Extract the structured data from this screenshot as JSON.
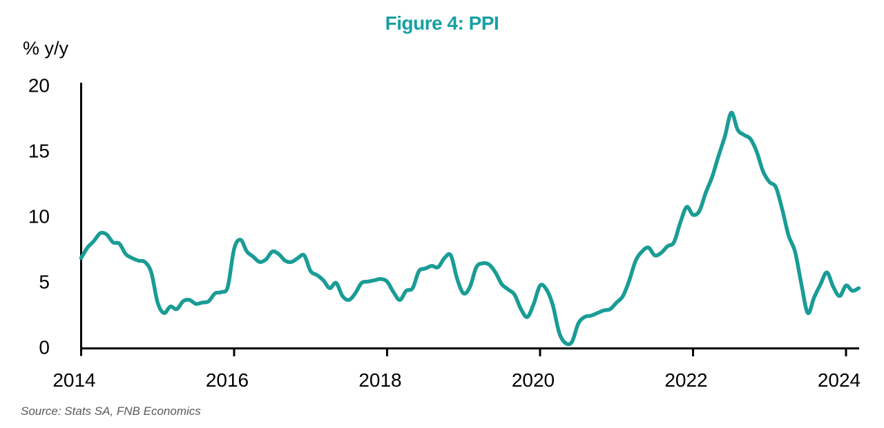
{
  "figure": {
    "title": "Figure 4: PPI",
    "y_axis_unit": "% y/y",
    "source": "Source: Stats SA, FNB Economics"
  },
  "colors": {
    "title_accent": "#17a0a2",
    "line": "#1a9c96",
    "axis": "#000000",
    "source_text": "#595959"
  },
  "chart_data": {
    "type": "line",
    "title": "Figure 4: PPI",
    "xlabel": "",
    "ylabel": "% y/y",
    "source": "Source: Stats SA, FNB Economics",
    "grid": false,
    "legend": "none",
    "xlim": [
      2014,
      2024.25
    ],
    "ylim": [
      0,
      20
    ],
    "x_tick_years": [
      2014,
      2016,
      2018,
      2020,
      2022,
      2024
    ],
    "x_tick_labels": [
      "2014",
      "2016",
      "2018",
      "2020",
      "2022",
      "2024"
    ],
    "y_tick_values": [
      0,
      5,
      10,
      15,
      20
    ],
    "y_tick_labels": [
      "0",
      "5",
      "10",
      "15",
      "20"
    ],
    "series": [
      {
        "name": "PPI",
        "color": "#1a9c96",
        "frequency": "monthly",
        "start_year": 2014,
        "start_month": 1,
        "values": [
          6.9,
          7.7,
          8.2,
          8.8,
          8.7,
          8.1,
          8.0,
          7.2,
          6.9,
          6.7,
          6.6,
          5.8,
          3.5,
          2.7,
          3.2,
          3.0,
          3.6,
          3.7,
          3.4,
          3.5,
          3.6,
          4.2,
          4.3,
          4.7,
          7.6,
          8.3,
          7.4,
          7.0,
          6.6,
          6.8,
          7.4,
          7.2,
          6.7,
          6.6,
          6.9,
          7.1,
          5.9,
          5.6,
          5.2,
          4.6,
          5.0,
          4.0,
          3.7,
          4.2,
          5.0,
          5.1,
          5.2,
          5.3,
          5.1,
          4.3,
          3.7,
          4.4,
          4.6,
          5.9,
          6.1,
          6.3,
          6.2,
          6.9,
          7.1,
          5.3,
          4.2,
          4.7,
          6.2,
          6.5,
          6.4,
          5.8,
          4.9,
          4.5,
          4.1,
          3.0,
          2.4,
          3.4,
          4.8,
          4.5,
          3.3,
          1.2,
          0.4,
          0.5,
          1.9,
          2.4,
          2.5,
          2.7,
          2.9,
          3.0,
          3.5,
          4.0,
          5.2,
          6.7,
          7.4,
          7.7,
          7.1,
          7.3,
          7.8,
          8.1,
          9.6,
          10.8,
          10.2,
          10.5,
          11.9,
          13.1,
          14.7,
          16.2,
          18.0,
          16.7,
          16.3,
          16.0,
          15.0,
          13.5,
          12.7,
          12.3,
          10.6,
          8.6,
          7.4,
          4.9,
          2.7,
          3.9,
          4.9,
          5.8,
          4.7,
          4.0,
          4.8,
          4.4,
          4.6
        ]
      }
    ]
  }
}
